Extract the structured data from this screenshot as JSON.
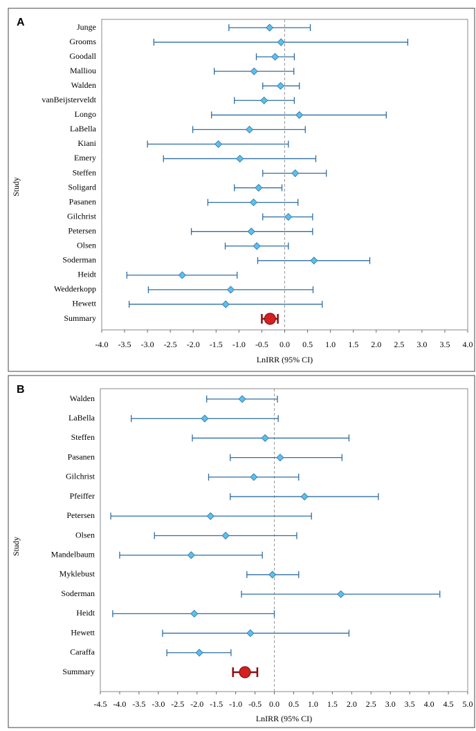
{
  "chart_data": [
    {
      "type": "forest",
      "panel_label": "A",
      "ylabel": "Study",
      "xlabel": "LnIRR (95% CI)",
      "categories": [
        "Junge",
        "Grooms",
        "Goodall",
        "Malliou",
        "Walden",
        "vanBeijsterveldt",
        "Longo",
        "LaBella",
        "Kiani",
        "Emery",
        "Steffen",
        "Soligard",
        "Pasanen",
        "Gilchrist",
        "Petersen",
        "Olsen",
        "Soderman",
        "Heidt",
        "Wedderkopp",
        "Hewett"
      ],
      "values": [
        -0.33,
        -0.08,
        -0.21,
        -0.67,
        -0.09,
        -0.45,
        0.32,
        -0.77,
        -1.45,
        -0.98,
        0.23,
        -0.57,
        -0.68,
        0.08,
        -0.73,
        -0.61,
        0.64,
        -2.24,
        -1.18,
        -1.29
      ],
      "ci_lower": [
        -1.22,
        -2.86,
        -0.62,
        -1.54,
        -0.48,
        -1.1,
        -1.6,
        -2.01,
        -3.0,
        -2.65,
        -0.48,
        -1.1,
        -1.68,
        -0.48,
        -2.04,
        -1.3,
        -0.59,
        -3.45,
        -2.98,
        -3.4
      ],
      "ci_upper": [
        0.56,
        2.69,
        0.21,
        0.2,
        0.32,
        0.21,
        2.22,
        0.45,
        0.08,
        0.68,
        0.91,
        -0.06,
        0.29,
        0.61,
        0.61,
        0.08,
        1.86,
        -1.04,
        0.62,
        0.82
      ],
      "color": "#5bc0eb",
      "line_color": "#2e6da4",
      "summary": {
        "label": "Summary",
        "value": -0.32,
        "lower": -0.5,
        "upper": -0.15,
        "color": "#d42020"
      },
      "xlim": [
        -4,
        4
      ],
      "xticks": [
        {
          "value": -4,
          "label": "-4.0"
        },
        -3.5,
        {
          "value": -3,
          "label": "-3.0"
        },
        -2.5,
        {
          "value": -2,
          "label": "-2.0"
        },
        -1.5,
        {
          "value": -1,
          "label": "-1.0"
        },
        -0.5,
        {
          "value": 0,
          "label": "0.0"
        },
        0.5,
        {
          "value": 1,
          "label": "1.0"
        },
        1.5,
        {
          "value": 2,
          "label": "2.0"
        },
        2.5,
        {
          "value": 3,
          "label": "3.0"
        },
        3.5,
        {
          "value": 4,
          "label": "4.0"
        }
      ]
    },
    {
      "type": "forest",
      "panel_label": "B",
      "ylabel": "Study",
      "xlabel": "LnIRR (95% CI)",
      "categories": [
        "Walden",
        "LaBella",
        "Steffen",
        "Pasanen",
        "Gilchrist",
        "Pfeiffer",
        "Petersen",
        "Olsen",
        "Mandelbaum",
        "Myklebust",
        "Soderman",
        "Heidt",
        "Hewett",
        "Caraffa"
      ],
      "values": [
        -0.83,
        -1.8,
        -0.24,
        0.15,
        -0.53,
        0.78,
        -1.65,
        -1.26,
        -2.15,
        -0.05,
        1.72,
        -2.07,
        -0.62,
        -1.94
      ],
      "ci_lower": [
        -1.75,
        -3.7,
        -2.12,
        -1.14,
        -1.7,
        -1.14,
        -4.23,
        -3.1,
        -4.0,
        -0.71,
        -0.85,
        -4.18,
        -2.89,
        -2.78
      ],
      "ci_upper": [
        0.08,
        0.1,
        1.93,
        1.75,
        0.63,
        2.69,
        0.96,
        0.58,
        -0.31,
        0.63,
        4.28,
        0,
        1.93,
        -1.12
      ],
      "color": "#5bc0eb",
      "line_color": "#2e6da4",
      "summary": {
        "label": "Summary",
        "value": -0.76,
        "lower": -1.07,
        "upper": -0.44,
        "color": "#d42020"
      },
      "xlim": [
        -4.5,
        5
      ],
      "xticks": [
        -4.5,
        {
          "value": -4,
          "label": "-4.0"
        },
        -3.5,
        {
          "value": -3,
          "label": "-3.0"
        },
        -2.5,
        {
          "value": -2,
          "label": "-2.0"
        },
        -1.5,
        {
          "value": -1,
          "label": "-1.0"
        },
        -0.5,
        {
          "value": 0,
          "label": "0.0"
        },
        0.5,
        {
          "value": 1,
          "label": "1.0"
        },
        1.5,
        {
          "value": 2,
          "label": "2.0"
        },
        2.5,
        {
          "value": 3,
          "label": "3.0"
        },
        3.5,
        {
          "value": 4,
          "label": "4.0"
        },
        4.5,
        {
          "value": 5,
          "label": "5.0"
        }
      ]
    }
  ]
}
